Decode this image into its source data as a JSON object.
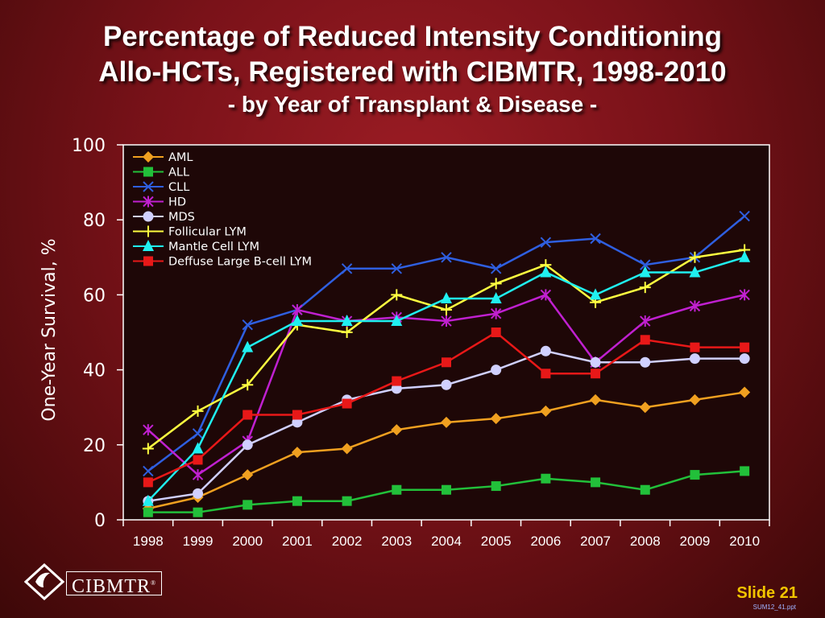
{
  "title_line1": "Percentage of Reduced Intensity Conditioning",
  "title_line2": "Allo-HCTs, Registered with CIBMTR, 1998-2010",
  "subtitle": "- by Year of Transplant & Disease -",
  "logo_text": "CIBMTR",
  "logo_mark": "®",
  "slide_label": "Slide 21",
  "slide_file": "SUM12_41.ppt",
  "colors": {
    "plot_background": "#1e0707",
    "axis_text": "#ffffff",
    "title_text": "#ffffff",
    "slide_number": "#f2c400"
  },
  "chart_data": {
    "type": "line",
    "title": "",
    "xlabel": "",
    "ylabel": "One-Year Survival, %",
    "ylim": [
      0,
      100
    ],
    "yticks": [
      0,
      20,
      40,
      60,
      80,
      100
    ],
    "grid": false,
    "legend_position": "top-left",
    "categories": [
      "1998",
      "1999",
      "2000",
      "2001",
      "2002",
      "2003",
      "2004",
      "2005",
      "2006",
      "2007",
      "2008",
      "2009",
      "2010"
    ],
    "series": [
      {
        "name": "AML",
        "color": "#f0a020",
        "marker": "diamond",
        "values": [
          3,
          6,
          12,
          18,
          19,
          24,
          26,
          27,
          29,
          32,
          30,
          32,
          34
        ]
      },
      {
        "name": "ALL",
        "color": "#22c03a",
        "marker": "square",
        "values": [
          2,
          2,
          4,
          5,
          5,
          8,
          8,
          9,
          11,
          10,
          8,
          12,
          13
        ]
      },
      {
        "name": "CLL",
        "color": "#2f5fe0",
        "marker": "x",
        "values": [
          13,
          23,
          52,
          56,
          67,
          67,
          70,
          67,
          74,
          75,
          68,
          70,
          81
        ]
      },
      {
        "name": "HD",
        "color": "#c020d0",
        "marker": "star",
        "values": [
          24,
          12,
          21,
          56,
          53,
          54,
          53,
          55,
          60,
          42,
          53,
          57,
          60
        ]
      },
      {
        "name": "MDS",
        "color": "#d0d0ff",
        "marker": "circle",
        "values": [
          5,
          7,
          20,
          26,
          32,
          35,
          36,
          40,
          45,
          42,
          42,
          43,
          43
        ]
      },
      {
        "name": "Follicular LYM",
        "color": "#ffff40",
        "marker": "plus",
        "values": [
          19,
          29,
          36,
          52,
          50,
          60,
          56,
          63,
          68,
          58,
          62,
          70,
          72
        ]
      },
      {
        "name": "Mantle Cell LYM",
        "color": "#20f0f0",
        "marker": "triangle",
        "values": [
          5,
          19,
          46,
          53,
          53,
          53,
          59,
          59,
          66,
          60,
          66,
          66,
          70
        ]
      },
      {
        "name": "Deffuse Large B-cell LYM",
        "color": "#e81818",
        "marker": "square",
        "values": [
          10,
          16,
          28,
          28,
          31,
          37,
          42,
          50,
          39,
          39,
          48,
          46,
          46
        ]
      }
    ]
  }
}
